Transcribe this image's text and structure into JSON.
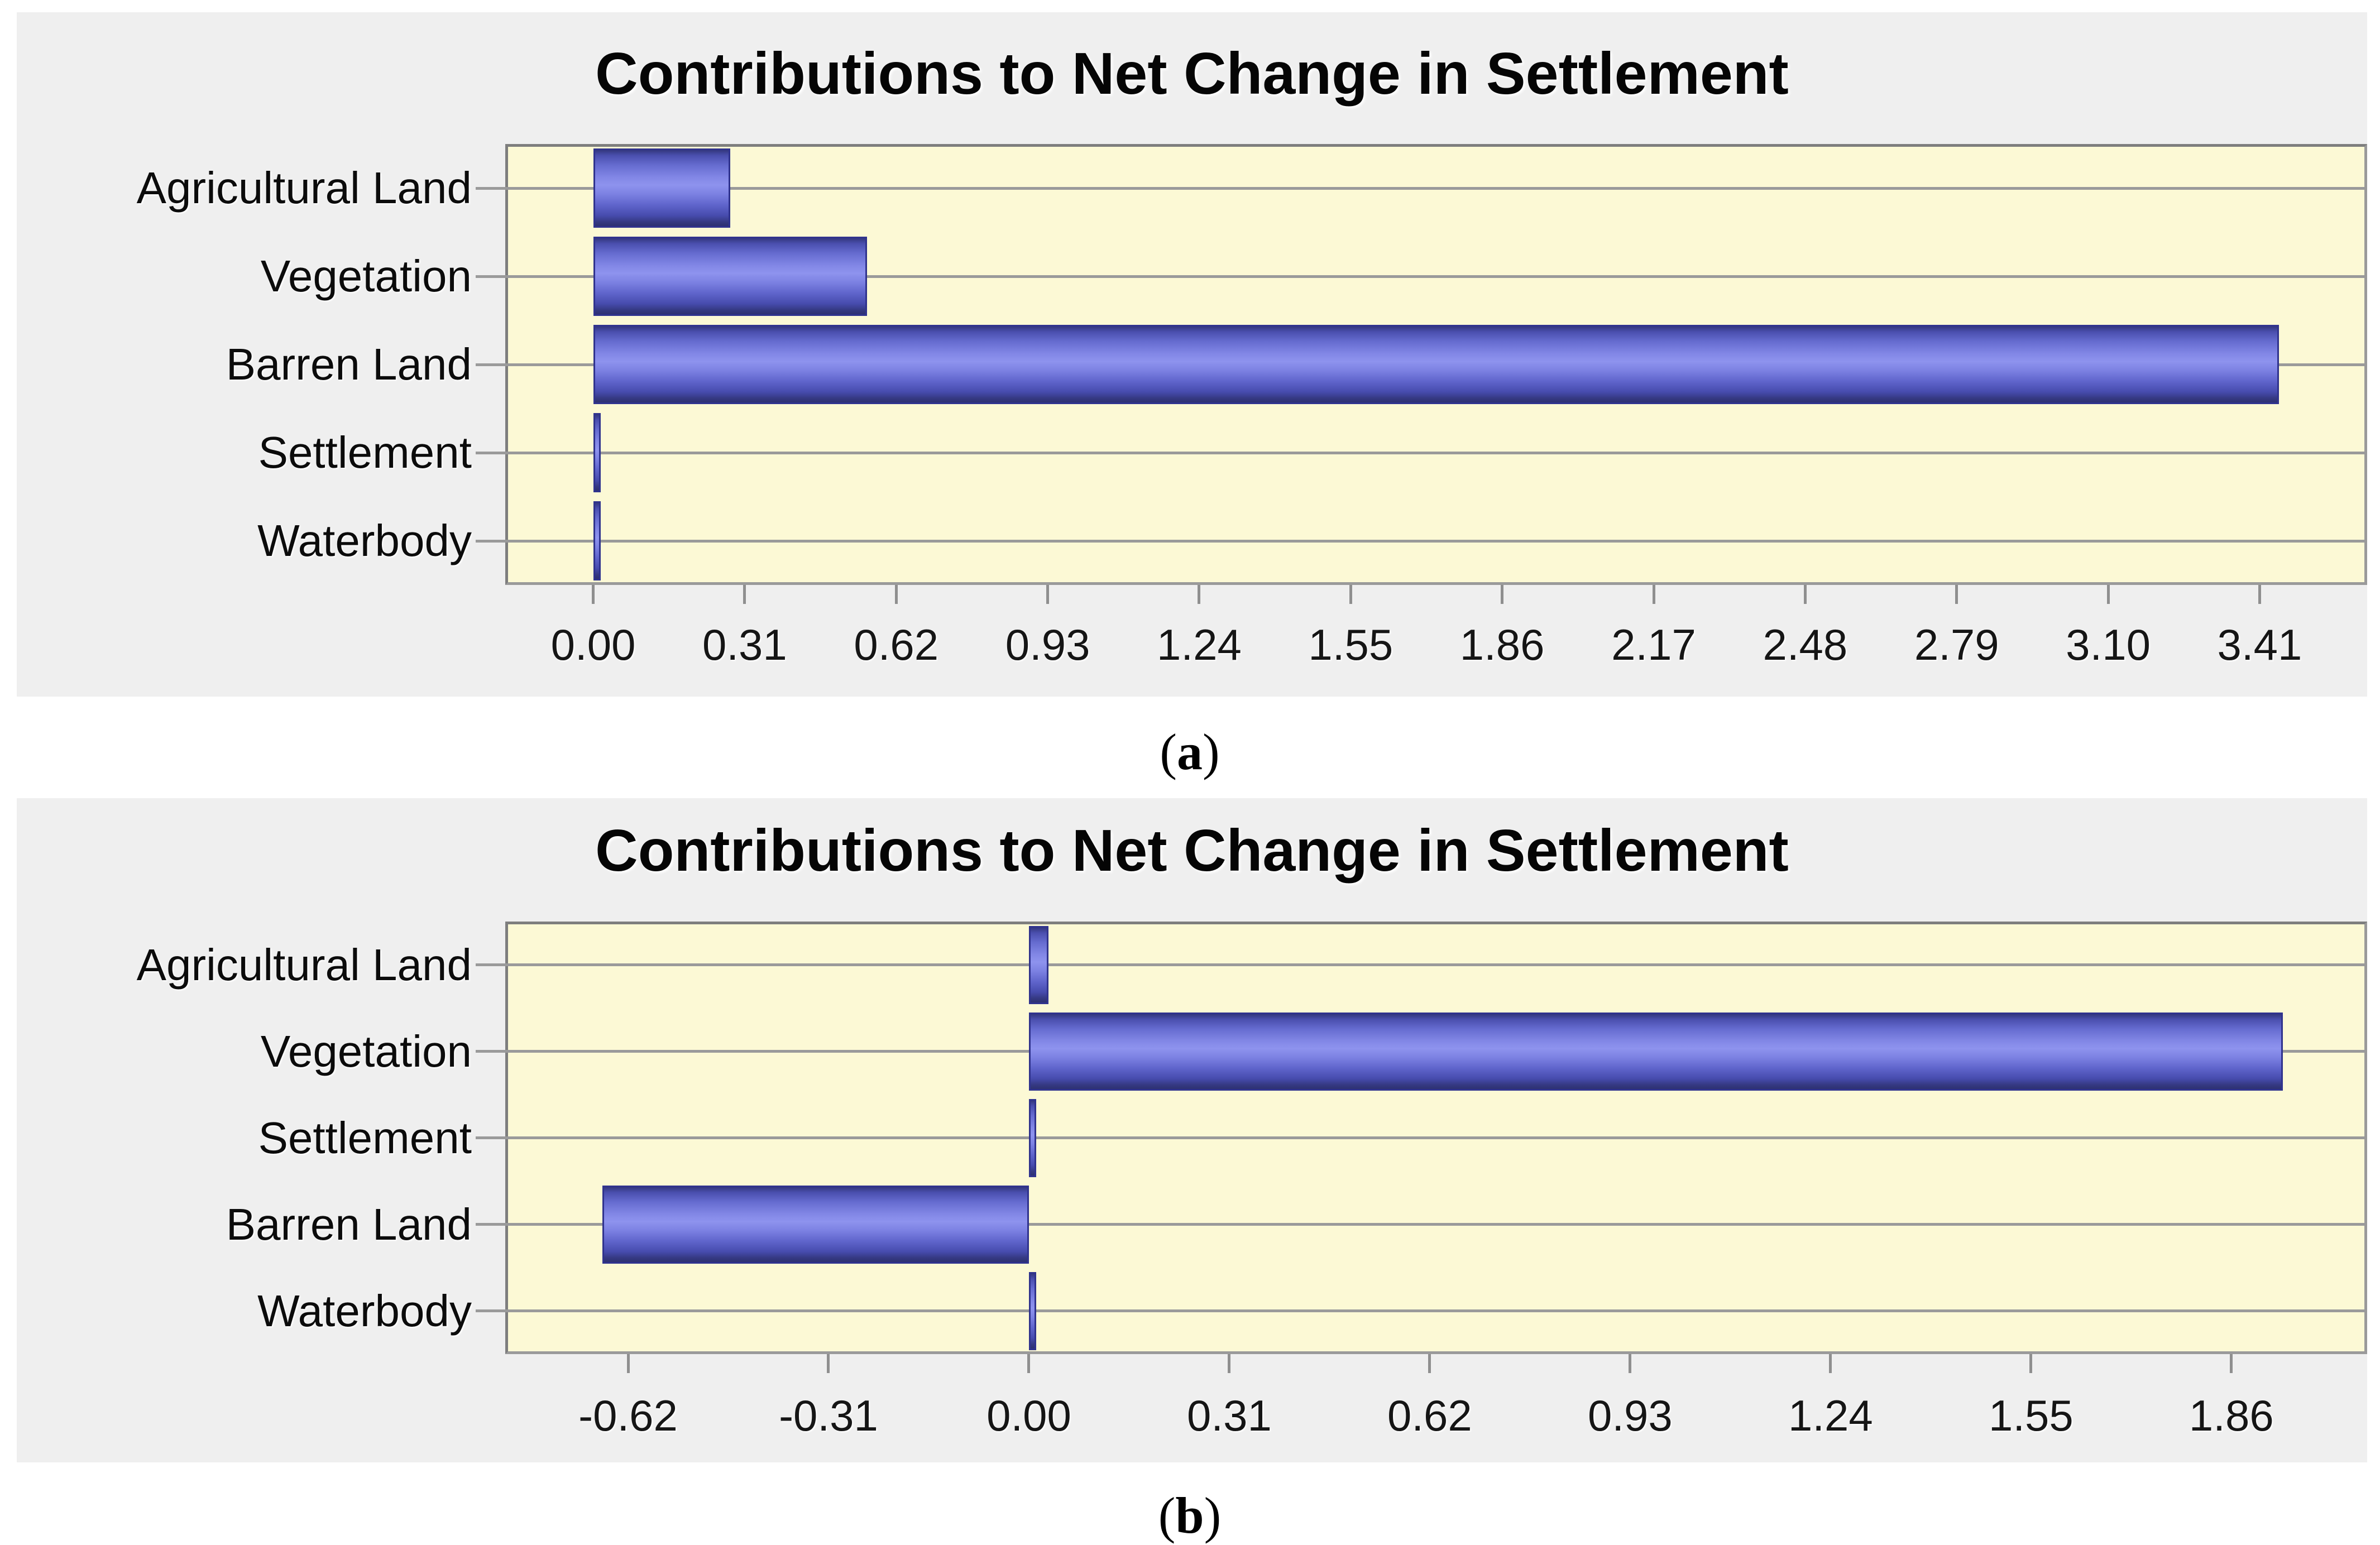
{
  "figure": {
    "caption_open": "(",
    "caption_close": ")",
    "background_color": "#ffffff",
    "panel_color": "#efefef",
    "plot_background_color": "#fcf9d5",
    "bar_color": "#6a70d8",
    "bar_edge_color": "#30338e",
    "gridline_color": "#9a9a9a",
    "frame_color": "#7e7e7e"
  },
  "chart_data": [
    {
      "type": "bar",
      "orientation": "horizontal",
      "title": "Contributions to Net Change in Settlement",
      "caption_label": "a",
      "categories": [
        "Agricultural Land",
        "Vegetation",
        "Barren Land",
        "Settlement",
        "Waterbody"
      ],
      "values": [
        0.28,
        0.56,
        3.45,
        0.01,
        0.01
      ],
      "xticks": [
        "0.00",
        "0.31",
        "0.62",
        "0.93",
        "1.24",
        "1.55",
        "1.86",
        "2.17",
        "2.48",
        "2.79",
        "3.10",
        "3.41"
      ],
      "xlim": [
        -0.18,
        3.63
      ],
      "xlabel": "",
      "ylabel": "",
      "grid": "horizontal",
      "legend": "none"
    },
    {
      "type": "bar",
      "orientation": "horizontal",
      "title": "Contributions to Net Change in Settlement",
      "caption_label": "b",
      "categories": [
        "Agricultural Land",
        "Vegetation",
        "Settlement",
        "Barren Land",
        "Waterbody"
      ],
      "values": [
        0.03,
        1.94,
        0.01,
        -0.66,
        0.01
      ],
      "xticks": [
        "-0.62",
        "-0.31",
        "0.00",
        "0.31",
        "0.62",
        "0.93",
        "1.24",
        "1.55",
        "1.86"
      ],
      "xlim": [
        -0.81,
        2.07
      ],
      "xlabel": "",
      "ylabel": "",
      "grid": "horizontal",
      "legend": "none"
    }
  ]
}
